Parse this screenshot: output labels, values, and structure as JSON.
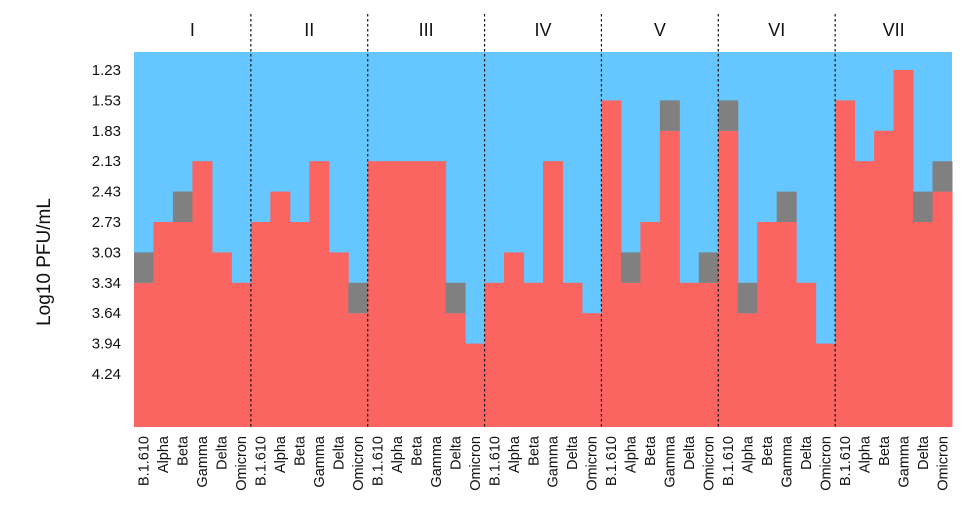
{
  "chart_data": {
    "type": "heatmap",
    "title": "",
    "xlabel": "",
    "ylabel": "Log10 PFU/mL",
    "ylim": [
      1.23,
      4.24
    ],
    "y_ticks": [
      "1.23",
      "1.53",
      "1.83",
      "2.13",
      "2.43",
      "2.73",
      "3.03",
      "3.34",
      "3.64",
      "3.94",
      "4.24"
    ],
    "categories": [
      "B.1.610",
      "Alpha",
      "Beta",
      "Gamma",
      "Delta",
      "Omicron"
    ],
    "groups": [
      {
        "label": "I",
        "values": [
          3.34,
          2.73,
          2.43,
          2.13,
          3.03,
          3.34
        ],
        "gray": [
          [
            3.03,
            3.34
          ],
          null,
          [
            2.43,
            2.73
          ],
          null,
          null,
          null
        ]
      },
      {
        "label": "II",
        "values": [
          2.73,
          2.43,
          2.73,
          2.13,
          3.03,
          3.64
        ],
        "gray": [
          null,
          null,
          null,
          null,
          null,
          [
            3.34,
            3.64
          ]
        ]
      },
      {
        "label": "III",
        "values": [
          2.13,
          2.13,
          2.13,
          2.13,
          3.64,
          3.94
        ],
        "gray": [
          null,
          null,
          null,
          null,
          [
            3.34,
            3.64
          ],
          null
        ]
      },
      {
        "label": "IV",
        "values": [
          3.34,
          3.03,
          3.34,
          2.13,
          3.34,
          3.64
        ],
        "gray": [
          null,
          null,
          null,
          null,
          null,
          null
        ]
      },
      {
        "label": "V",
        "values": [
          1.53,
          3.34,
          2.73,
          1.83,
          3.34,
          3.34
        ],
        "gray": [
          null,
          [
            3.03,
            3.34
          ],
          null,
          [
            1.53,
            1.83
          ],
          null,
          [
            3.03,
            3.34
          ]
        ]
      },
      {
        "label": "VI",
        "values": [
          1.83,
          3.64,
          2.73,
          2.73,
          3.34,
          3.94
        ],
        "gray": [
          [
            1.53,
            1.83
          ],
          [
            3.34,
            3.64
          ],
          null,
          [
            2.43,
            2.73
          ],
          null,
          null
        ]
      },
      {
        "label": "VII",
        "values": [
          1.53,
          2.13,
          1.83,
          1.23,
          2.73,
          2.43
        ],
        "gray": [
          null,
          null,
          null,
          null,
          [
            2.43,
            2.73
          ],
          [
            2.13,
            2.43
          ]
        ]
      }
    ],
    "colors": {
      "background": "#66c6ff",
      "bar": "#fa6461",
      "gray": "#808080",
      "divider": "#111111"
    }
  }
}
